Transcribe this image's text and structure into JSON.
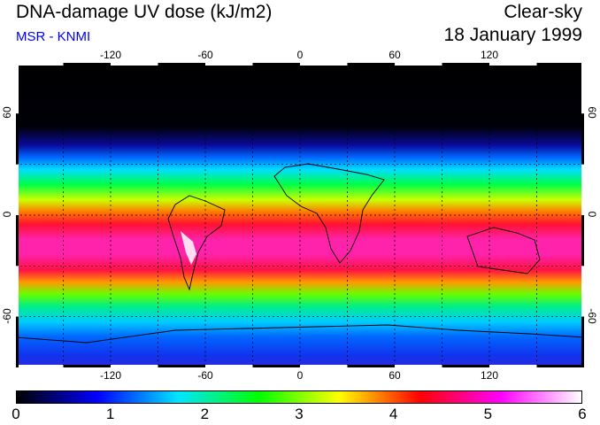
{
  "title": "DNA-damage UV dose (kJ/m2)",
  "subtitle": "MSR - KNMI",
  "sky_condition": "Clear-sky",
  "date": "18 January 1999",
  "map": {
    "projection": "equirectangular",
    "lon_range": [
      -180,
      180
    ],
    "lat_range": [
      -90,
      90
    ],
    "lon_ticks": [
      "-120",
      "-60",
      "0",
      "60",
      "120"
    ],
    "lat_ticks": [
      "60",
      "0",
      "-60"
    ],
    "lat_ticks_right": [
      "60",
      "0",
      "-60"
    ]
  },
  "colorbar": {
    "min": 0,
    "max": 6,
    "labels": [
      "0",
      "1",
      "2",
      "3",
      "4",
      "5",
      "6"
    ],
    "colors": [
      "#000000",
      "#0000ff",
      "#00e5ff",
      "#00ff00",
      "#ffff00",
      "#ff0000",
      "#ff00ff",
      "#ffffff"
    ]
  }
}
